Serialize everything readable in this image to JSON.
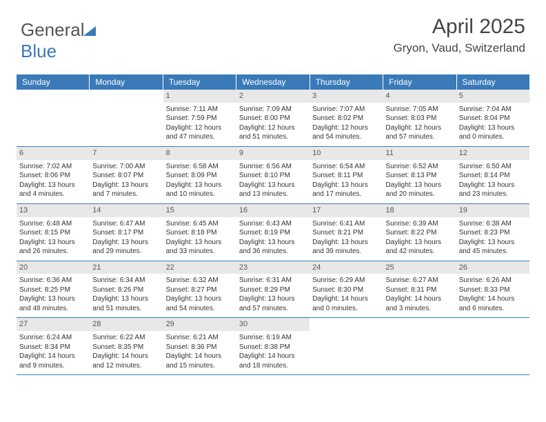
{
  "logo": {
    "part1": "General",
    "part2": "Blue"
  },
  "title": "April 2025",
  "location": "Gryon, Vaud, Switzerland",
  "colors": {
    "header_bg": "#3a7ab8",
    "header_text": "#ffffff",
    "daynum_bg": "#e8e8e8",
    "text": "#333333",
    "row_border": "#3a7ab8"
  },
  "day_headers": [
    "Sunday",
    "Monday",
    "Tuesday",
    "Wednesday",
    "Thursday",
    "Friday",
    "Saturday"
  ],
  "weeks": [
    [
      null,
      null,
      {
        "n": "1",
        "sr": "7:11 AM",
        "ss": "7:59 PM",
        "dl": "12 hours and 47 minutes."
      },
      {
        "n": "2",
        "sr": "7:09 AM",
        "ss": "8:00 PM",
        "dl": "12 hours and 51 minutes."
      },
      {
        "n": "3",
        "sr": "7:07 AM",
        "ss": "8:02 PM",
        "dl": "12 hours and 54 minutes."
      },
      {
        "n": "4",
        "sr": "7:05 AM",
        "ss": "8:03 PM",
        "dl": "12 hours and 57 minutes."
      },
      {
        "n": "5",
        "sr": "7:04 AM",
        "ss": "8:04 PM",
        "dl": "13 hours and 0 minutes."
      }
    ],
    [
      {
        "n": "6",
        "sr": "7:02 AM",
        "ss": "8:06 PM",
        "dl": "13 hours and 4 minutes."
      },
      {
        "n": "7",
        "sr": "7:00 AM",
        "ss": "8:07 PM",
        "dl": "13 hours and 7 minutes."
      },
      {
        "n": "8",
        "sr": "6:58 AM",
        "ss": "8:09 PM",
        "dl": "13 hours and 10 minutes."
      },
      {
        "n": "9",
        "sr": "6:56 AM",
        "ss": "8:10 PM",
        "dl": "13 hours and 13 minutes."
      },
      {
        "n": "10",
        "sr": "6:54 AM",
        "ss": "8:11 PM",
        "dl": "13 hours and 17 minutes."
      },
      {
        "n": "11",
        "sr": "6:52 AM",
        "ss": "8:13 PM",
        "dl": "13 hours and 20 minutes."
      },
      {
        "n": "12",
        "sr": "6:50 AM",
        "ss": "8:14 PM",
        "dl": "13 hours and 23 minutes."
      }
    ],
    [
      {
        "n": "13",
        "sr": "6:48 AM",
        "ss": "8:15 PM",
        "dl": "13 hours and 26 minutes."
      },
      {
        "n": "14",
        "sr": "6:47 AM",
        "ss": "8:17 PM",
        "dl": "13 hours and 29 minutes."
      },
      {
        "n": "15",
        "sr": "6:45 AM",
        "ss": "8:18 PM",
        "dl": "13 hours and 33 minutes."
      },
      {
        "n": "16",
        "sr": "6:43 AM",
        "ss": "8:19 PM",
        "dl": "13 hours and 36 minutes."
      },
      {
        "n": "17",
        "sr": "6:41 AM",
        "ss": "8:21 PM",
        "dl": "13 hours and 39 minutes."
      },
      {
        "n": "18",
        "sr": "6:39 AM",
        "ss": "8:22 PM",
        "dl": "13 hours and 42 minutes."
      },
      {
        "n": "19",
        "sr": "6:38 AM",
        "ss": "8:23 PM",
        "dl": "13 hours and 45 minutes."
      }
    ],
    [
      {
        "n": "20",
        "sr": "6:36 AM",
        "ss": "8:25 PM",
        "dl": "13 hours and 48 minutes."
      },
      {
        "n": "21",
        "sr": "6:34 AM",
        "ss": "8:26 PM",
        "dl": "13 hours and 51 minutes."
      },
      {
        "n": "22",
        "sr": "6:32 AM",
        "ss": "8:27 PM",
        "dl": "13 hours and 54 minutes."
      },
      {
        "n": "23",
        "sr": "6:31 AM",
        "ss": "8:29 PM",
        "dl": "13 hours and 57 minutes."
      },
      {
        "n": "24",
        "sr": "6:29 AM",
        "ss": "8:30 PM",
        "dl": "14 hours and 0 minutes."
      },
      {
        "n": "25",
        "sr": "6:27 AM",
        "ss": "8:31 PM",
        "dl": "14 hours and 3 minutes."
      },
      {
        "n": "26",
        "sr": "6:26 AM",
        "ss": "8:33 PM",
        "dl": "14 hours and 6 minutes."
      }
    ],
    [
      {
        "n": "27",
        "sr": "6:24 AM",
        "ss": "8:34 PM",
        "dl": "14 hours and 9 minutes."
      },
      {
        "n": "28",
        "sr": "6:22 AM",
        "ss": "8:35 PM",
        "dl": "14 hours and 12 minutes."
      },
      {
        "n": "29",
        "sr": "6:21 AM",
        "ss": "8:36 PM",
        "dl": "14 hours and 15 minutes."
      },
      {
        "n": "30",
        "sr": "6:19 AM",
        "ss": "8:38 PM",
        "dl": "14 hours and 18 minutes."
      },
      null,
      null,
      null
    ]
  ],
  "labels": {
    "sunrise": "Sunrise:",
    "sunset": "Sunset:",
    "daylight": "Daylight:"
  }
}
